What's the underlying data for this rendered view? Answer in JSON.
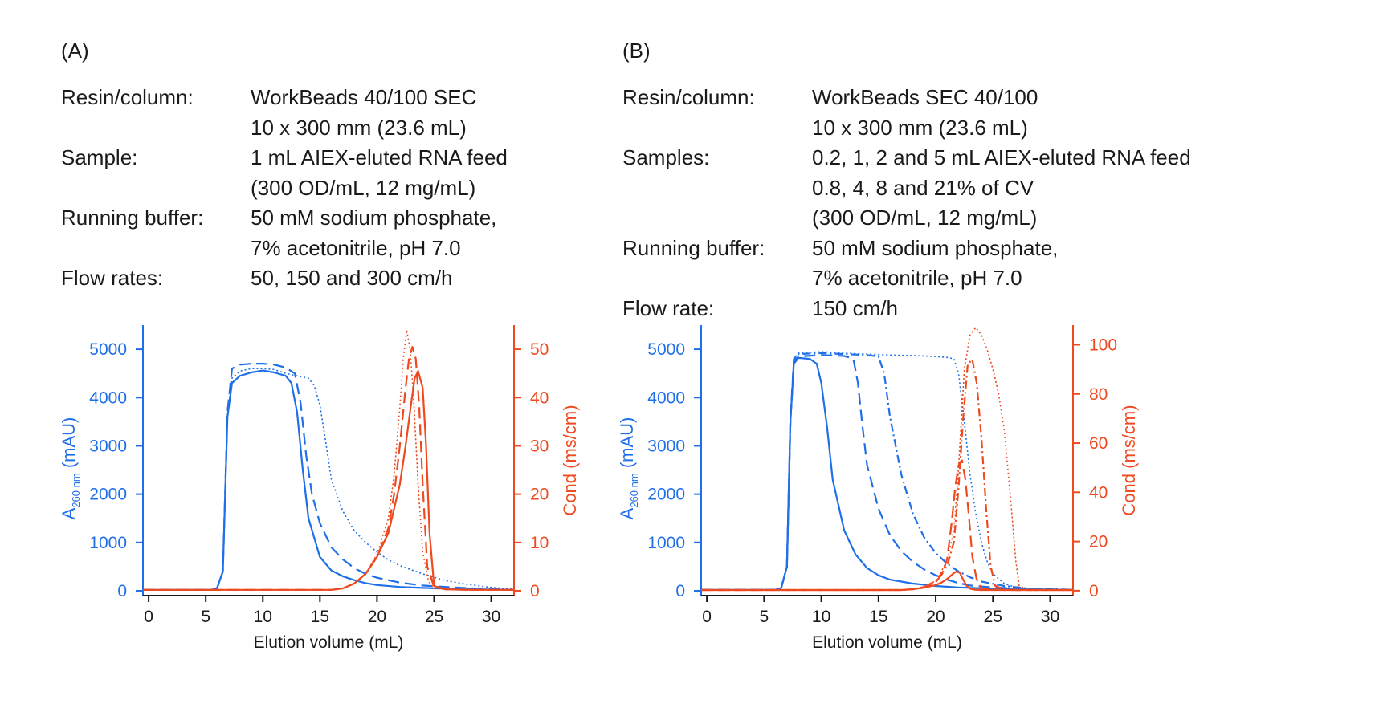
{
  "panels": [
    {
      "label": "(A)",
      "info": [
        {
          "key": "Resin/column:",
          "values": [
            "WorkBeads 40/100 SEC",
            "10 x 300 mm (23.6 mL)"
          ]
        },
        {
          "key": "Sample:",
          "values": [
            "1 mL AIEX-eluted RNA feed",
            "(300 OD/mL, 12 mg/mL)"
          ]
        },
        {
          "key": "Running buffer:",
          "values": [
            "50 mM sodium phosphate,",
            "7% acetonitrile, pH 7.0"
          ]
        },
        {
          "key": "Flow rates:",
          "values": [
            "50, 150 and 300 cm/h"
          ]
        }
      ]
    },
    {
      "label": "(B)",
      "info": [
        {
          "key": "Resin/column:",
          "values": [
            "WorkBeads SEC 40/100",
            "10 x 300 mm (23.6 mL)"
          ]
        },
        {
          "key": "Samples:",
          "values": [
            "0.2, 1, 2 and 5 mL AIEX-eluted RNA feed",
            "0.8, 4, 8 and 21% of CV",
            "(300 OD/mL, 12 mg/mL)"
          ]
        },
        {
          "key": "Running buffer:",
          "values": [
            "50 mM sodium phosphate,",
            "7% acetonitrile, pH 7.0"
          ]
        },
        {
          "key": "Flow rate:",
          "values": [
            "150 cm/h"
          ]
        }
      ]
    }
  ],
  "colors": {
    "absorbance": "#1f6fe8",
    "conductivity": "#ef4a1f"
  },
  "chart_data": [
    {
      "type": "line",
      "xlabel": "Elution volume (mL)",
      "ylabel_left": {
        "main": "A",
        "sub": "260 nm",
        "rest": " (mAU)"
      },
      "ylabel_right": "Cond (ms/cm)",
      "xlim": [
        -0.5,
        32
      ],
      "ylim_left": [
        -100,
        5500
      ],
      "ylim_right": [
        -1,
        55
      ],
      "xticks": [
        0,
        5,
        10,
        15,
        20,
        25,
        30
      ],
      "yticks_left": [
        0,
        1000,
        2000,
        3000,
        4000,
        5000
      ],
      "yticks_right": [
        0,
        10,
        20,
        30,
        40,
        50
      ],
      "grid": false,
      "series": [
        {
          "axis": "left",
          "style": "solid",
          "x": [
            -0.5,
            5.5,
            6.0,
            6.5,
            6.9,
            7.3,
            8,
            9,
            10,
            11,
            12,
            12.5,
            13,
            13.5,
            14,
            15,
            16,
            17,
            18,
            19,
            20,
            22,
            24,
            26,
            28,
            30,
            32
          ],
          "y": [
            20,
            20,
            60,
            400,
            3600,
            4300,
            4450,
            4520,
            4560,
            4520,
            4450,
            4300,
            3700,
            2500,
            1500,
            700,
            420,
            300,
            220,
            160,
            120,
            80,
            60,
            45,
            35,
            25,
            20
          ]
        },
        {
          "axis": "left",
          "style": "dashed",
          "x": [
            -0.5,
            5.6,
            6.0,
            6.5,
            6.9,
            7.3,
            8,
            9,
            10,
            11,
            12,
            12.8,
            13.3,
            13.8,
            14.3,
            15,
            16,
            17,
            18,
            19,
            20,
            22,
            24,
            26,
            28,
            30,
            32
          ],
          "y": [
            20,
            20,
            60,
            400,
            3700,
            4600,
            4680,
            4700,
            4700,
            4680,
            4620,
            4500,
            3900,
            2800,
            2000,
            1400,
            900,
            650,
            470,
            350,
            270,
            170,
            110,
            80,
            55,
            35,
            20
          ]
        },
        {
          "axis": "left",
          "style": "dotted",
          "x": [
            -0.5,
            5.6,
            6.0,
            6.5,
            6.9,
            7.3,
            8,
            9,
            10,
            11,
            12,
            13,
            14,
            14.5,
            15,
            15.5,
            16,
            17,
            18,
            19,
            20,
            21,
            22,
            24,
            26,
            28,
            30,
            32
          ],
          "y": [
            20,
            20,
            60,
            400,
            3600,
            4400,
            4550,
            4600,
            4600,
            4580,
            4500,
            4450,
            4400,
            4250,
            3850,
            3100,
            2300,
            1650,
            1250,
            1000,
            800,
            640,
            520,
            350,
            210,
            130,
            70,
            30
          ]
        },
        {
          "axis": "right",
          "style": "solid",
          "x": [
            -0.5,
            16,
            17,
            18,
            19,
            20,
            21,
            22,
            22.5,
            23,
            23.3,
            23.6,
            24,
            24.3,
            24.6,
            25,
            26,
            28,
            32
          ],
          "y": [
            0.2,
            0.2,
            0.5,
            1.5,
            3.5,
            7,
            12,
            22,
            30,
            39,
            44,
            45.5,
            42,
            30,
            12,
            1,
            0.3,
            0.2,
            0.2
          ]
        },
        {
          "axis": "right",
          "style": "dashed",
          "x": [
            -0.5,
            16,
            17,
            18,
            19,
            20,
            21,
            21.5,
            22,
            22.5,
            22.8,
            23.1,
            23.4,
            23.7,
            24,
            24.4,
            25,
            26,
            28,
            32
          ],
          "y": [
            0.2,
            0.2,
            0.5,
            1.5,
            3.5,
            7,
            13,
            20,
            30,
            42,
            48,
            50.5,
            48,
            38,
            22,
            5,
            0.8,
            0.3,
            0.2,
            0.2
          ]
        },
        {
          "axis": "right",
          "style": "dotted",
          "x": [
            -0.5,
            16,
            17,
            18,
            19,
            20,
            21,
            21.5,
            22,
            22.3,
            22.6,
            22.9,
            23.2,
            23.6,
            24,
            24.5,
            25,
            26,
            28,
            32
          ],
          "y": [
            0.2,
            0.2,
            0.5,
            1.5,
            3.5,
            7.5,
            15,
            24,
            38,
            48,
            54,
            50,
            40,
            22,
            8,
            2,
            0.5,
            0.3,
            0.2,
            0.2
          ]
        }
      ]
    },
    {
      "type": "line",
      "xlabel": "Elution volume (mL)",
      "ylabel_left": {
        "main": "A",
        "sub": "260 nm",
        "rest": " (mAU)"
      },
      "ylabel_right": "Cond (ms/cm)",
      "xlim": [
        -0.5,
        32
      ],
      "ylim_left": [
        -100,
        5500
      ],
      "ylim_right": [
        -2,
        108
      ],
      "xticks": [
        0,
        5,
        10,
        15,
        20,
        25,
        30
      ],
      "yticks_left": [
        0,
        1000,
        2000,
        3000,
        4000,
        5000
      ],
      "yticks_right": [
        0,
        20,
        40,
        60,
        80,
        100
      ],
      "grid": false,
      "series": [
        {
          "axis": "left",
          "style": "solid",
          "x": [
            -0.5,
            6.0,
            6.5,
            7.0,
            7.3,
            7.6,
            8,
            9,
            9.6,
            10,
            10.5,
            11,
            12,
            13,
            14,
            15,
            16,
            18,
            20,
            22,
            25,
            28,
            32
          ],
          "y": [
            20,
            20,
            60,
            500,
            3500,
            4700,
            4820,
            4800,
            4700,
            4300,
            3400,
            2300,
            1250,
            750,
            470,
            320,
            230,
            150,
            100,
            70,
            45,
            30,
            20
          ]
        },
        {
          "axis": "left",
          "style": "dashed",
          "x": [
            -0.5,
            6.0,
            6.5,
            7.0,
            7.3,
            7.6,
            8,
            10,
            12,
            12.8,
            13.2,
            13.6,
            14,
            15,
            16,
            17,
            18,
            19,
            20,
            21,
            22,
            23,
            25,
            28,
            32
          ],
          "y": [
            20,
            20,
            60,
            500,
            3500,
            4750,
            4850,
            4880,
            4860,
            4800,
            4300,
            3400,
            2600,
            1700,
            1150,
            820,
            600,
            440,
            320,
            230,
            160,
            110,
            70,
            40,
            20
          ]
        },
        {
          "axis": "left",
          "style": "dashdot",
          "x": [
            -0.5,
            6.0,
            6.5,
            7.0,
            7.3,
            7.6,
            8,
            10,
            12,
            14,
            15,
            15.5,
            16,
            17,
            18,
            19,
            20,
            21,
            22,
            23,
            24,
            26,
            28,
            32
          ],
          "y": [
            20,
            20,
            60,
            500,
            3500,
            4800,
            4900,
            4920,
            4900,
            4880,
            4850,
            4500,
            3600,
            2400,
            1600,
            1100,
            780,
            560,
            400,
            280,
            190,
            100,
            50,
            20
          ]
        },
        {
          "axis": "left",
          "style": "dotted",
          "x": [
            -0.5,
            6.0,
            6.5,
            7.0,
            7.3,
            7.6,
            8,
            10,
            12,
            14,
            16,
            18,
            20,
            21,
            21.6,
            22,
            22.5,
            23,
            23.5,
            24,
            24.5,
            25,
            26,
            27,
            28,
            32
          ],
          "y": [
            20,
            20,
            60,
            500,
            3500,
            4800,
            4920,
            4950,
            4920,
            4900,
            4880,
            4870,
            4850,
            4830,
            4800,
            4500,
            3500,
            2400,
            1600,
            1000,
            600,
            350,
            150,
            70,
            40,
            20
          ]
        },
        {
          "axis": "right",
          "style": "solid",
          "x": [
            -0.5,
            17,
            18,
            19,
            20,
            20.5,
            21,
            21.5,
            21.8,
            22.1,
            22.4,
            22.7,
            23,
            23.4,
            24,
            26,
            28,
            32
          ],
          "y": [
            0.3,
            0.3,
            0.6,
            1.2,
            2.3,
            3.3,
            4.8,
            6.8,
            7.8,
            7.3,
            4.5,
            2,
            0.8,
            0.4,
            0.3,
            0.3,
            0.3,
            0.3
          ]
        },
        {
          "axis": "right",
          "style": "dashed",
          "x": [
            -0.5,
            17,
            18,
            19,
            20,
            20.6,
            21,
            21.4,
            21.7,
            22,
            22.3,
            22.6,
            22.9,
            23.2,
            23.6,
            24,
            26,
            28,
            32
          ],
          "y": [
            0.3,
            0.3,
            0.6,
            1.5,
            3.5,
            7,
            13,
            28,
            42,
            51,
            53,
            45,
            30,
            14,
            4,
            0.8,
            0.3,
            0.3,
            0.3
          ]
        },
        {
          "axis": "right",
          "style": "dashdot",
          "x": [
            -0.5,
            17,
            18,
            19,
            20,
            21,
            21.6,
            22,
            22.4,
            22.8,
            23.2,
            23.6,
            24,
            24.4,
            24.8,
            25.2,
            26,
            28,
            32
          ],
          "y": [
            0.3,
            0.3,
            0.6,
            1.5,
            4,
            10,
            20,
            42,
            70,
            92,
            94,
            84,
            62,
            34,
            10,
            2,
            0.4,
            0.3,
            0.3
          ]
        },
        {
          "axis": "right",
          "style": "dotted",
          "x": [
            -0.5,
            17,
            18,
            19,
            20,
            21,
            21.6,
            22,
            22.5,
            23,
            23.5,
            24,
            24.5,
            25,
            25.5,
            26,
            26.5,
            27,
            27.3,
            28,
            32
          ],
          "y": [
            0.3,
            0.3,
            0.6,
            1.5,
            4,
            12,
            25,
            50,
            90,
            104,
            107,
            104,
            98,
            90,
            80,
            65,
            40,
            12,
            2,
            0.4,
            0.3
          ]
        }
      ]
    }
  ]
}
